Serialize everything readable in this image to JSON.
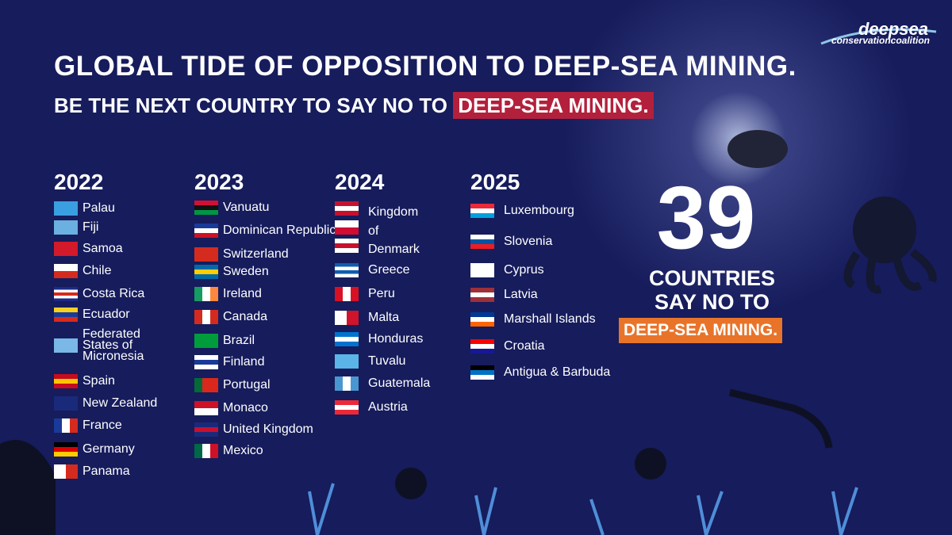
{
  "logo": {
    "line1": "deepsea",
    "line2": "conservationcoalition"
  },
  "title": "GLOBAL TIDE OF OPPOSITION TO DEEP-SEA MINING.",
  "subtitle": {
    "text": "BE THE NEXT COUNTRY TO SAY NO TO",
    "highlight": "DEEP-SEA MINING."
  },
  "columns": [
    {
      "year": "2022",
      "countries": [
        "Palau",
        "Fiji",
        "Samoa",
        "Chile",
        "Costa Rica",
        "Ecuador",
        "Federated States of Micronesia",
        "Spain",
        "New Zealand",
        "France",
        "Germany",
        "Panama"
      ]
    },
    {
      "year": "2023",
      "countries": [
        "Vanuatu",
        "Dominican Republic",
        "Switzerland",
        "Sweden",
        "Ireland",
        "Canada",
        "Brazil",
        "Finland",
        "Portugal",
        "Monaco",
        "United Kingdom",
        "Mexico"
      ]
    },
    {
      "year": "2024",
      "countries": [
        "Kingdom of Denmark",
        "Greece",
        "Peru",
        "Malta",
        "Honduras",
        "Tuvalu",
        "Guatemala",
        "Austria"
      ]
    },
    {
      "year": "2025",
      "countries": [
        "Luxembourg",
        "Slovenia",
        "Cyprus",
        "Latvia",
        "Marshall Islands",
        "Croatia",
        "Antigua & Barbuda"
      ]
    }
  ],
  "count": {
    "number": "39",
    "line1": "COUNTRIES",
    "line2": "SAY NO TO",
    "highlight": "DEEP-SEA MINING."
  }
}
